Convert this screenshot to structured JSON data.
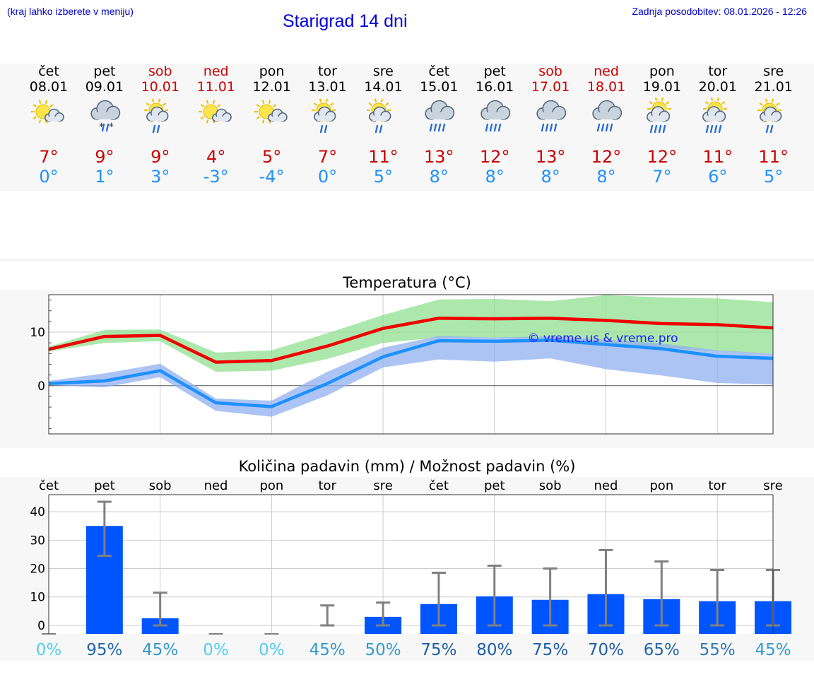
{
  "header": {
    "hint": "(kraj lahko izberete v meniju)",
    "title": "Starigrad 14 dni",
    "updated": "Zadnja posodobitev: 08.01.2026 - 12:26"
  },
  "days": [
    {
      "name": "čet",
      "date": "08.01",
      "weekend": false,
      "icon": "sun-cloud-icon",
      "max": "7°",
      "min": "0°"
    },
    {
      "name": "pet",
      "date": "09.01",
      "weekend": false,
      "icon": "cloud-snow-rain-icon",
      "max": "9°",
      "min": "1°"
    },
    {
      "name": "sob",
      "date": "10.01",
      "weekend": true,
      "icon": "sun-cloud-rain-icon",
      "max": "9°",
      "min": "3°"
    },
    {
      "name": "ned",
      "date": "11.01",
      "weekend": true,
      "icon": "sun-cloud-icon",
      "max": "4°",
      "min": "-3°"
    },
    {
      "name": "pon",
      "date": "12.01",
      "weekend": false,
      "icon": "sun-cloud-icon",
      "max": "5°",
      "min": "-4°"
    },
    {
      "name": "tor",
      "date": "13.01",
      "weekend": false,
      "icon": "sun-cloud-rain-icon",
      "max": "7°",
      "min": "0°"
    },
    {
      "name": "sre",
      "date": "14.01",
      "weekend": false,
      "icon": "sun-cloud-rain-icon",
      "max": "11°",
      "min": "5°"
    },
    {
      "name": "čet",
      "date": "15.01",
      "weekend": false,
      "icon": "cloud-heavy-rain-icon",
      "max": "13°",
      "min": "8°"
    },
    {
      "name": "pet",
      "date": "16.01",
      "weekend": false,
      "icon": "cloud-heavy-rain-icon",
      "max": "12°",
      "min": "8°"
    },
    {
      "name": "sob",
      "date": "17.01",
      "weekend": true,
      "icon": "cloud-heavy-rain-icon",
      "max": "13°",
      "min": "8°"
    },
    {
      "name": "ned",
      "date": "18.01",
      "weekend": true,
      "icon": "cloud-heavy-rain-icon",
      "max": "12°",
      "min": "8°"
    },
    {
      "name": "pon",
      "date": "19.01",
      "weekend": false,
      "icon": "sun-cloud-heavy-rain-icon",
      "max": "12°",
      "min": "7°"
    },
    {
      "name": "tor",
      "date": "20.01",
      "weekend": false,
      "icon": "sun-cloud-heavy-rain-icon",
      "max": "11°",
      "min": "6°"
    },
    {
      "name": "sre",
      "date": "21.01",
      "weekend": false,
      "icon": "sun-cloud-rain-icon",
      "max": "11°",
      "min": "5°"
    }
  ],
  "colors": {
    "max": "#ee0000",
    "min": "#1e90ff",
    "max_band": "#90e090",
    "min_band": "#90b0f0",
    "bar": "#0055ff",
    "err": "#808080"
  },
  "chart_data": [
    {
      "type": "line",
      "title": "Temperatura (°C)",
      "watermark": "© vreme.us & vreme.pro",
      "categories": [
        "čet",
        "pet",
        "sob",
        "ned",
        "pon",
        "tor",
        "sre",
        "čet",
        "pet",
        "sob",
        "ned",
        "pon",
        "tor",
        "sre"
      ],
      "ylim": [
        -9,
        17
      ],
      "yticks": [
        0,
        10
      ],
      "series": [
        {
          "name": "max",
          "values": [
            6.8,
            9.2,
            9.4,
            4.4,
            4.7,
            7.4,
            10.7,
            12.6,
            12.5,
            12.6,
            12.2,
            11.6,
            11.4,
            10.8
          ],
          "band_low": [
            6.4,
            8.0,
            8.3,
            2.6,
            2.8,
            5.0,
            8.0,
            9.0,
            9.0,
            8.8,
            8.0,
            7.0,
            6.5,
            6.0
          ],
          "band_high": [
            7.3,
            10.4,
            10.5,
            6.2,
            6.6,
            9.8,
            13.2,
            16.1,
            16.2,
            15.8,
            16.9,
            16.5,
            16.3,
            15.6
          ]
        },
        {
          "name": "min",
          "values": [
            0.4,
            0.9,
            2.8,
            -3.2,
            -3.9,
            0.4,
            5.4,
            8.4,
            8.3,
            8.5,
            7.7,
            6.9,
            5.5,
            5.1
          ],
          "band_low": [
            0.1,
            -0.3,
            1.6,
            -4.7,
            -5.8,
            -1.8,
            3.4,
            4.9,
            4.5,
            5.1,
            3.1,
            1.9,
            0.5,
            0.2
          ],
          "band_high": [
            0.9,
            2.3,
            4.1,
            -2.4,
            -2.8,
            2.6,
            7.1,
            9.3,
            9.0,
            9.2,
            8.6,
            7.9,
            6.6,
            6.0
          ]
        }
      ]
    },
    {
      "type": "bar",
      "title": "Količina padavin (mm) / Možnost padavin (%)",
      "categories": [
        "čet",
        "pet",
        "sob",
        "ned",
        "pon",
        "tor",
        "sre",
        "čet",
        "pet",
        "sob",
        "ned",
        "pon",
        "tor",
        "sre"
      ],
      "ylim": [
        -3,
        46
      ],
      "yticks": [
        0,
        10,
        20,
        30,
        40
      ],
      "values": [
        0,
        35,
        2.5,
        0,
        0,
        0,
        3,
        7.5,
        10.2,
        9,
        11,
        9.2,
        8.5,
        8.5
      ],
      "err_low": [
        0,
        24.5,
        0,
        0,
        0,
        0,
        0,
        0,
        0,
        0,
        0,
        0,
        0,
        0
      ],
      "err_high": [
        0,
        43.5,
        11.5,
        0,
        0,
        7,
        8,
        18.5,
        21,
        20,
        26.5,
        22.5,
        19.5,
        19.5
      ],
      "probability": [
        "0%",
        "95%",
        "45%",
        "0%",
        "0%",
        "45%",
        "50%",
        "75%",
        "80%",
        "75%",
        "70%",
        "65%",
        "55%",
        "45%"
      ],
      "probability_colors": [
        "#55ccee",
        "#2266aa",
        "#3399cc",
        "#55ccee",
        "#55ccee",
        "#3399cc",
        "#3399cc",
        "#1f5ea8",
        "#1f5ea8",
        "#1f5ea8",
        "#1f5ea8",
        "#2266aa",
        "#2e78b8",
        "#3399cc"
      ]
    }
  ]
}
